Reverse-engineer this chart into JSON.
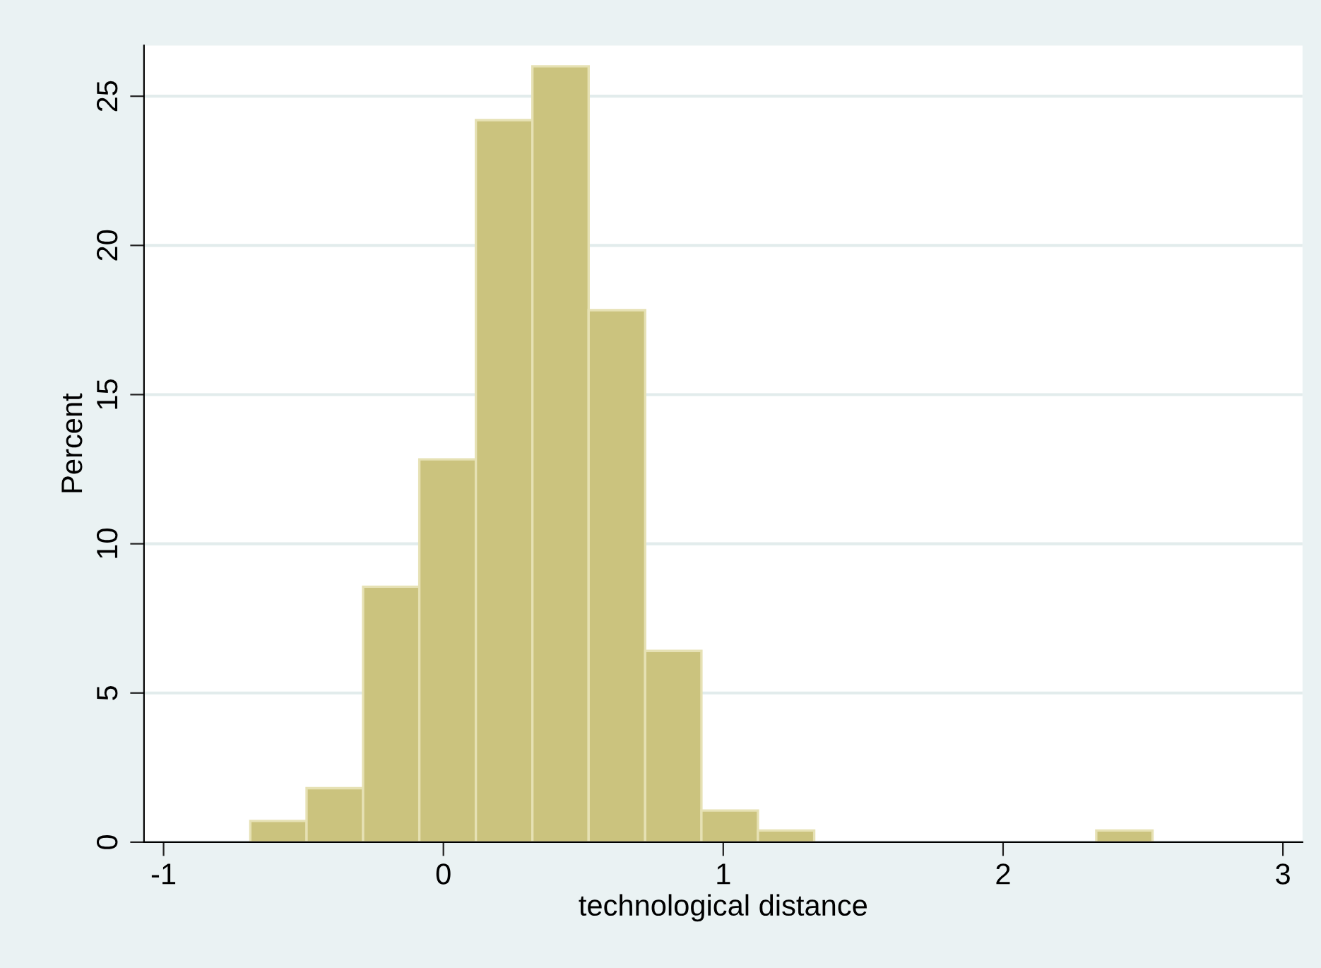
{
  "chart_data": {
    "type": "histogram",
    "xlabel": "technological distance",
    "ylabel": "Percent",
    "bins": [
      -0.69,
      -0.489,
      -0.287,
      -0.086,
      0.116,
      0.318,
      0.519,
      0.721,
      0.922,
      1.124,
      1.325,
      1.527,
      1.728,
      1.93,
      2.131,
      2.333,
      2.534
    ],
    "values": [
      0.71,
      1.81,
      8.56,
      12.83,
      24.2,
      26.0,
      17.83,
      6.41,
      1.06,
      0.39,
      0,
      0,
      0,
      0,
      0,
      0.39
    ],
    "color": "#cbc37e",
    "xlim": [
      -1.07,
      3.07
    ],
    "xticks": [
      -1,
      0,
      1,
      2,
      3
    ],
    "ylim": [
      0,
      26.7
    ],
    "yticks": [
      0,
      5,
      10,
      15,
      20,
      25
    ],
    "grid": "y",
    "legend": false
  }
}
